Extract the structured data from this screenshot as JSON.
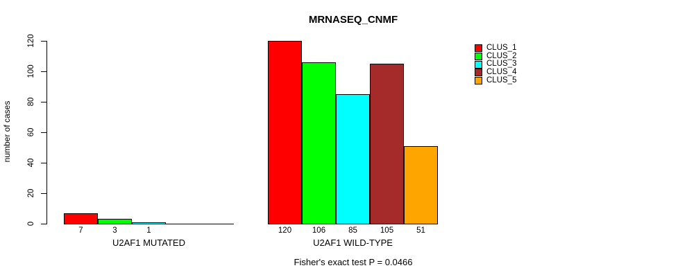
{
  "chart_data": {
    "type": "bar",
    "title": "MRNASEQ_CNMF",
    "ylabel": "number of cases",
    "ylim": [
      0,
      120
    ],
    "yticks": [
      0,
      20,
      40,
      60,
      80,
      100,
      120
    ],
    "grid": false,
    "legend_position": "right",
    "series": [
      "CLUS_1",
      "CLUS_2",
      "CLUS_3",
      "CLUS_4",
      "CLUS_5"
    ],
    "colors": [
      "#FF0000",
      "#00FF00",
      "#00FFFF",
      "#A52A2A",
      "#FFA500"
    ],
    "groups": [
      {
        "label": "U2AF1 MUTATED",
        "values": [
          7,
          3,
          1,
          0,
          0
        ]
      },
      {
        "label": "U2AF1 WILD-TYPE",
        "values": [
          120,
          106,
          85,
          105,
          51
        ]
      }
    ],
    "bar_value_labels": [
      [
        7,
        3,
        1
      ],
      [
        120,
        106,
        85,
        105,
        51
      ]
    ],
    "annotation": "Fisher's exact test P = 0.0466"
  }
}
